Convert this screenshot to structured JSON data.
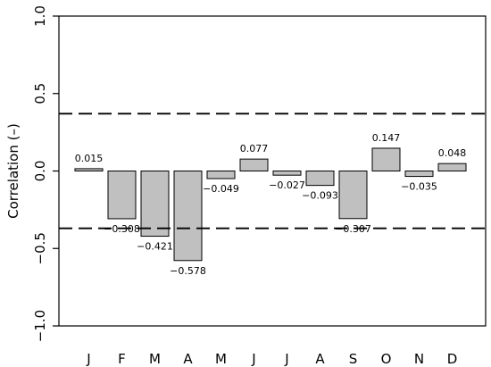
{
  "chart_data": {
    "type": "bar",
    "categories": [
      "J",
      "F",
      "M",
      "A",
      "M",
      "J",
      "J",
      "A",
      "S",
      "O",
      "N",
      "D"
    ],
    "values": [
      0.015,
      -0.308,
      -0.421,
      -0.578,
      -0.049,
      0.077,
      -0.027,
      -0.093,
      -0.307,
      0.147,
      -0.035,
      0.048
    ],
    "value_labels": [
      "0.015",
      "−0.308",
      "−0.421",
      "−0.578",
      "−0.049",
      "0.077",
      "−0.027",
      "−0.093",
      "−0.307",
      "0.147",
      "−0.035",
      "0.048"
    ],
    "ylabel": "Correlation (–)",
    "ylim": [
      -1.0,
      1.0
    ],
    "yticks": [
      1.0,
      0.5,
      0.0,
      -0.5,
      -1.0
    ],
    "ytick_labels": [
      "1.0",
      "0.5",
      "0.0",
      "−0.5",
      "−1.0"
    ],
    "thresholds": [
      0.37,
      -0.37
    ],
    "bar_color": "#c0c0c0",
    "grid": false,
    "legend": "none"
  }
}
